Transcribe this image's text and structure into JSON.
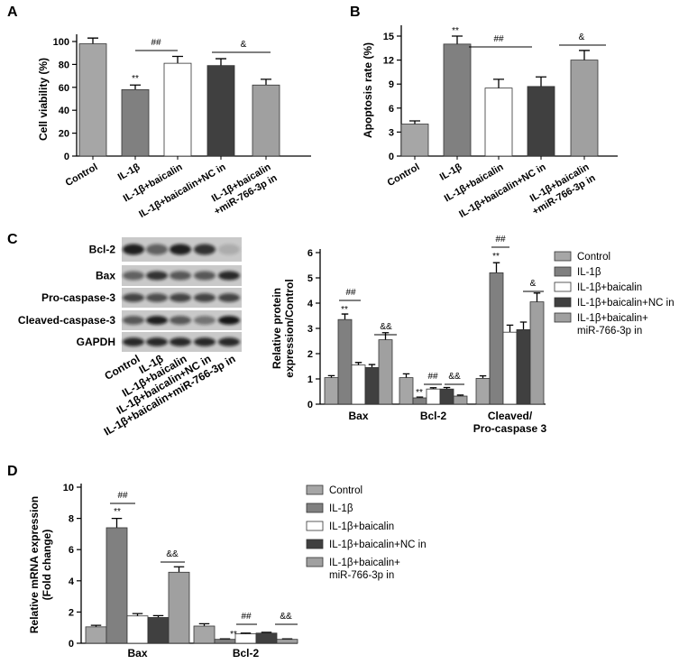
{
  "chart_data": [
    {
      "panel": "A",
      "type": "bar",
      "y_label": "Cell viability (%)",
      "categories": [
        "Control",
        "IL-1β",
        "IL-1β+baicalin",
        "IL-1β+baicalin+NC in",
        "IL-1β+baicalin\n+miR-766-3p in"
      ],
      "values": [
        98,
        58,
        81,
        79,
        62
      ],
      "errors": [
        5,
        4,
        6,
        6,
        5
      ],
      "colors": [
        "#a6a6a6",
        "#808080",
        "#ffffff",
        "#404040",
        "#a0a0a0"
      ],
      "ylim": [
        0,
        100
      ],
      "yticks": [
        0,
        20,
        40,
        60,
        80,
        100
      ],
      "annotations": [
        "**",
        "##",
        "&"
      ]
    },
    {
      "panel": "B",
      "type": "bar",
      "y_label": "Apoptosis rate (%)",
      "categories": [
        "Control",
        "IL-1β",
        "IL-1β+baicalin",
        "IL-1β+baicalin+NC in",
        "IL-1β+baicalin\n+miR-766-3p in"
      ],
      "values": [
        4,
        14,
        8.5,
        8.7,
        12
      ],
      "errors": [
        0.4,
        1,
        1.1,
        1.2,
        1.2
      ],
      "colors": [
        "#a6a6a6",
        "#808080",
        "#ffffff",
        "#404040",
        "#a0a0a0"
      ],
      "ylim": [
        0,
        15
      ],
      "yticks": [
        0,
        3,
        6,
        9,
        12,
        15
      ],
      "annotations": [
        "**",
        "##",
        "&"
      ]
    },
    {
      "type": "bar",
      "y_label": "Relative protein\nexpression/Control",
      "categories": [
        "Bax",
        "Bcl-2",
        "Cleaved/\nPro-caspase 3"
      ],
      "series": [
        {
          "name": "Control",
          "color": "#a6a6a6",
          "values": [
            1.05,
            1.05,
            1.02
          ],
          "errors": [
            0.08,
            0.15,
            0.1
          ]
        },
        {
          "name": "IL-1β",
          "color": "#808080",
          "values": [
            3.35,
            0.25,
            5.2
          ],
          "errors": [
            0.22,
            0.03,
            0.4
          ]
        },
        {
          "name": "IL-1β+baicalin",
          "color": "#ffffff",
          "values": [
            1.55,
            0.6,
            2.85
          ],
          "errors": [
            0.1,
            0.05,
            0.28
          ]
        },
        {
          "name": "IL-1β+baicalin+NC in",
          "color": "#404040",
          "values": [
            1.45,
            0.6,
            2.95
          ],
          "errors": [
            0.12,
            0.06,
            0.3
          ]
        },
        {
          "name": "IL-1β+baicalin+\nmiR-766-3p in",
          "color": "#a0a0a0",
          "values": [
            2.55,
            0.32,
            4.05
          ],
          "errors": [
            0.28,
            0.04,
            0.35
          ]
        }
      ],
      "ylim": [
        0,
        6
      ],
      "yticks": [
        0,
        1,
        2,
        3,
        4,
        5,
        6
      ],
      "legend": "right",
      "annotations": [
        "**",
        "##",
        "&&",
        "**",
        "##",
        "&&",
        "**",
        "##",
        "&"
      ]
    },
    {
      "panel": "D",
      "type": "bar",
      "y_label": "Relative mRNA expression\n(Fold change)",
      "categories": [
        "Bax",
        "Bcl-2"
      ],
      "series": [
        {
          "name": "Control",
          "color": "#a6a6a6",
          "values": [
            1.05,
            1.1
          ],
          "errors": [
            0.1,
            0.15
          ]
        },
        {
          "name": "IL-1β",
          "color": "#808080",
          "values": [
            7.4,
            0.25
          ],
          "errors": [
            0.6,
            0.03
          ]
        },
        {
          "name": "IL-1β+baicalin",
          "color": "#ffffff",
          "values": [
            1.75,
            0.6
          ],
          "errors": [
            0.15,
            0.05
          ]
        },
        {
          "name": "IL-1β+baicalin+NC in",
          "color": "#404040",
          "values": [
            1.65,
            0.65
          ],
          "errors": [
            0.12,
            0.05
          ]
        },
        {
          "name": "IL-1β+baicalin+\nmiR-766-3p in",
          "color": "#a0a0a0",
          "values": [
            4.55,
            0.25
          ],
          "errors": [
            0.35,
            0.03
          ]
        }
      ],
      "ylim": [
        0,
        10
      ],
      "yticks": [
        0,
        2,
        4,
        6,
        8,
        10
      ],
      "legend": "right",
      "annotations": [
        "**",
        "##",
        "&&",
        "**",
        "##",
        "&&"
      ]
    }
  ],
  "blot": {
    "panel": "C",
    "proteins": [
      "Bcl-2",
      "Bax",
      "Pro-caspase-3",
      "Cleaved-caspase-3",
      "GAPDH"
    ],
    "lanes": [
      "Control",
      "IL-1β",
      "IL-1β+baicalin",
      "IL-1β+baicalin+NC in",
      "IL-1β+baicalin+miR-766-3p in"
    ]
  }
}
